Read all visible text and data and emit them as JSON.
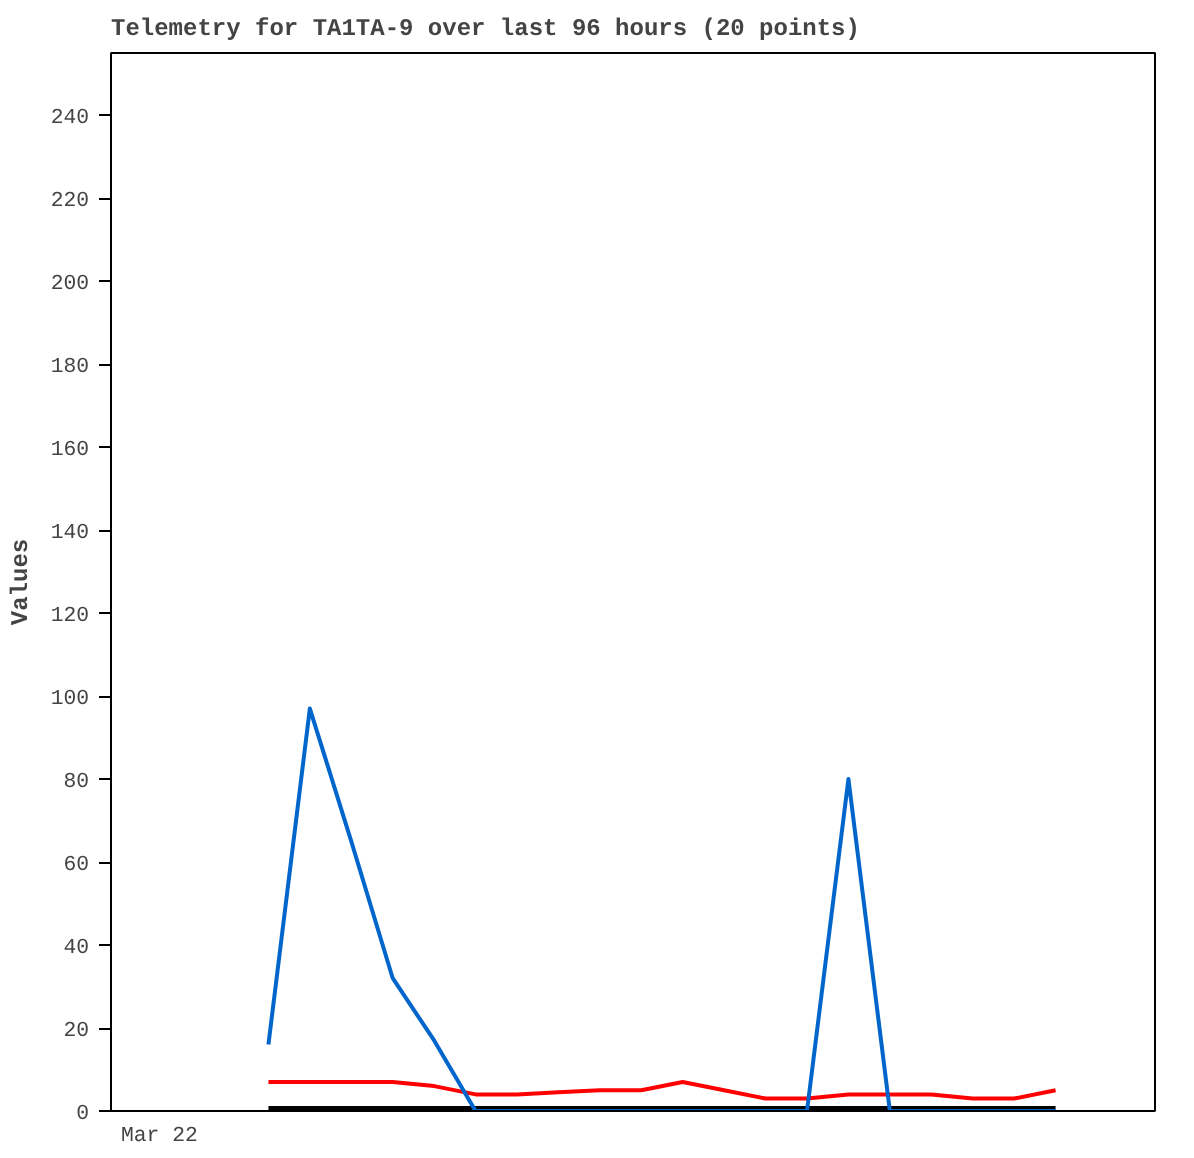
{
  "chart_data": {
    "type": "line",
    "title": "Telemetry for TA1TA-9 over last 96 hours (20 points)",
    "ylabel": "Values",
    "categories": [
      null,
      null,
      null,
      null,
      null,
      null,
      null,
      null,
      null,
      null,
      null,
      null,
      null,
      null,
      null,
      null,
      null,
      null,
      null,
      null
    ],
    "annotations": [
      "Mar 22"
    ],
    "ylim": [
      0,
      255
    ],
    "yticks": [
      0,
      20,
      40,
      60,
      80,
      100,
      120,
      140,
      160,
      180,
      200,
      220,
      240
    ],
    "grid": false,
    "marker": "none",
    "line_style": "solid",
    "series": [
      {
        "color": "#000000",
        "values": [
          0,
          0,
          0,
          0,
          0,
          0,
          0,
          0,
          0,
          0,
          0,
          0,
          0,
          0,
          0,
          0,
          0,
          0,
          0,
          0
        ]
      },
      {
        "color": "#ff0000",
        "values": [
          7,
          7,
          7,
          7,
          6,
          4,
          4,
          4.5,
          5,
          5,
          7,
          5,
          3,
          3,
          4,
          4,
          4,
          3,
          3,
          5
        ]
      },
      {
        "color": "#0066cc",
        "values": [
          16,
          97,
          65,
          32,
          17,
          0,
          0,
          0,
          0,
          0,
          0,
          0,
          0,
          0,
          80,
          0,
          0,
          0,
          0,
          0
        ]
      }
    ]
  }
}
